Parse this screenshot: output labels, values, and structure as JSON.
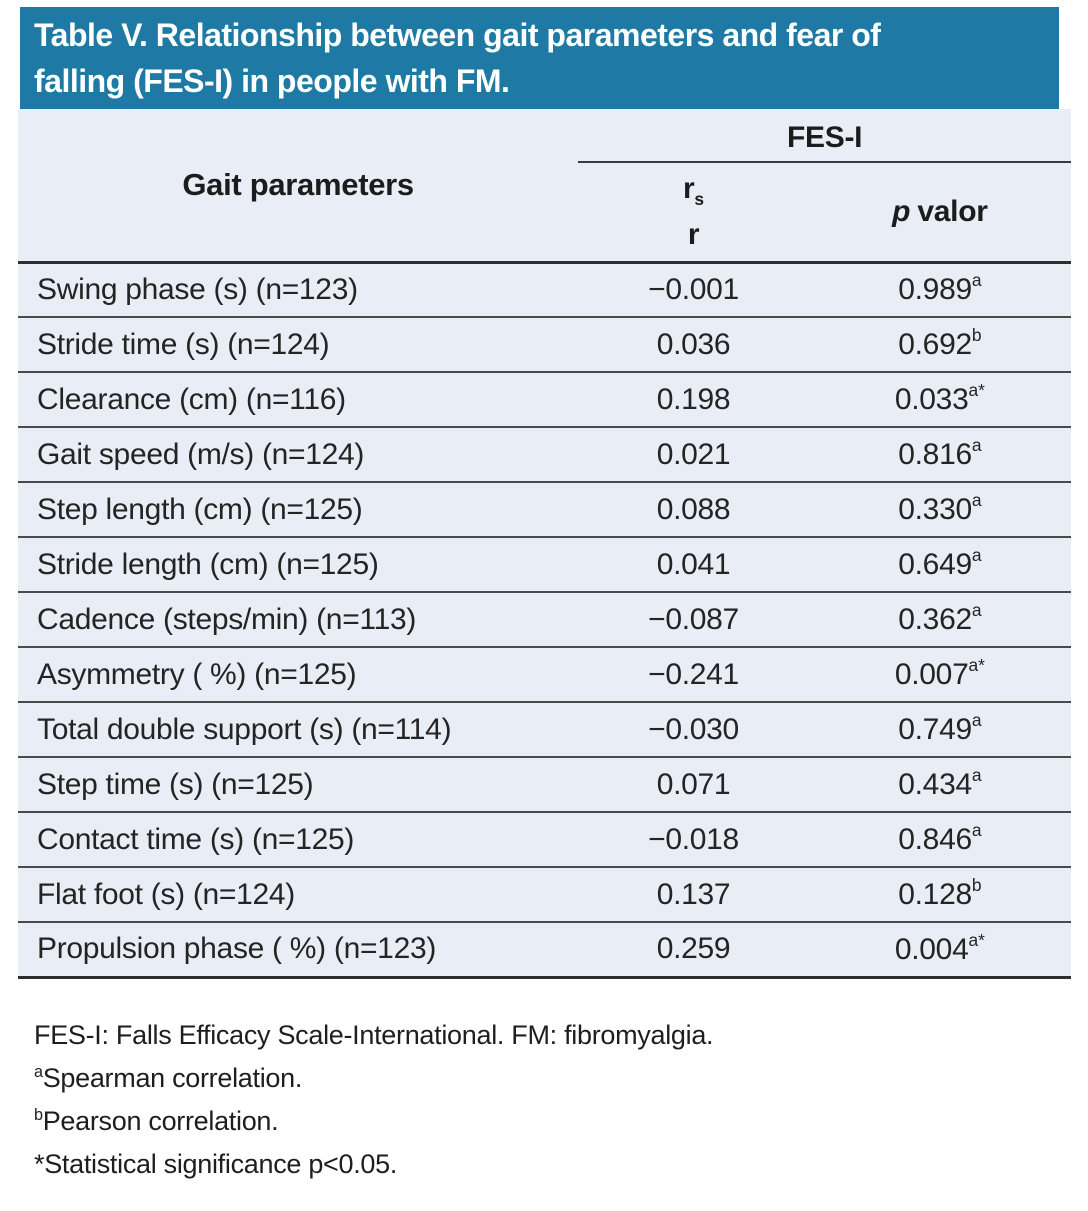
{
  "title": {
    "lines": [
      "Table V. Relationship between gait parameters and fear of",
      "falling (FES-I) in people with FM."
    ]
  },
  "table": {
    "col1_header": "Gait parameters",
    "group_header": "FES-I",
    "col2_header": {
      "line1_base": "r",
      "line1_sub": "s",
      "line2": "r"
    },
    "col3_header": {
      "italic": "p",
      "rest": "valor"
    },
    "rows": [
      {
        "param": "Swing phase (s) (n=123)",
        "r": "−0.001",
        "p": "0.989",
        "p_sup": "a"
      },
      {
        "param": "Stride time (s) (n=124)",
        "r": "0.036",
        "p": "0.692",
        "p_sup": "b"
      },
      {
        "param": "Clearance (cm) (n=116)",
        "r": "0.198",
        "p": "0.033",
        "p_sup": "a*"
      },
      {
        "param": "Gait speed (m/s) (n=124)",
        "r": "0.021",
        "p": "0.816",
        "p_sup": "a"
      },
      {
        "param": "Step length (cm) (n=125)",
        "r": "0.088",
        "p": "0.330",
        "p_sup": "a"
      },
      {
        "param": "Stride length (cm) (n=125)",
        "r": "0.041",
        "p": "0.649",
        "p_sup": "a"
      },
      {
        "param": "Cadence (steps/min) (n=113)",
        "r": "−0.087",
        "p": "0.362",
        "p_sup": "a"
      },
      {
        "param": "Asymmetry ( %) (n=125)",
        "r": "−0.241",
        "p": "0.007",
        "p_sup": "a*"
      },
      {
        "param": "Total double support (s) (n=114)",
        "r": "−0.030",
        "p": "0.749",
        "p_sup": "a"
      },
      {
        "param": "Step time (s) (n=125)",
        "r": "0.071",
        "p": "0.434",
        "p_sup": "a"
      },
      {
        "param": "Contact time (s) (n=125)",
        "r": "−0.018",
        "p": "0.846",
        "p_sup": "a"
      },
      {
        "param": "Flat foot (s) (n=124)",
        "r": "0.137",
        "p": "0.128",
        "p_sup": "b"
      },
      {
        "param": "Propulsion phase ( %) (n=123)",
        "r": "0.259",
        "p": "0.004",
        "p_sup": "a*"
      }
    ]
  },
  "footnotes": [
    {
      "sup": "",
      "text": "FES-I: Falls Efficacy Scale-International. FM: fibromyalgia."
    },
    {
      "sup": "a",
      "text": "Spearman correlation."
    },
    {
      "sup": "b",
      "text": "Pearson correlation."
    },
    {
      "sup": "",
      "text": "*Statistical significance p<0.05."
    }
  ],
  "colors": {
    "title_bar_bg": "#1e7aa5",
    "title_text": "#ffffff",
    "table_bg": "#e9edf5",
    "rule_heavy": "#2e2e2e",
    "rule_light": "#4a4a4a",
    "body_text": "#242424"
  }
}
